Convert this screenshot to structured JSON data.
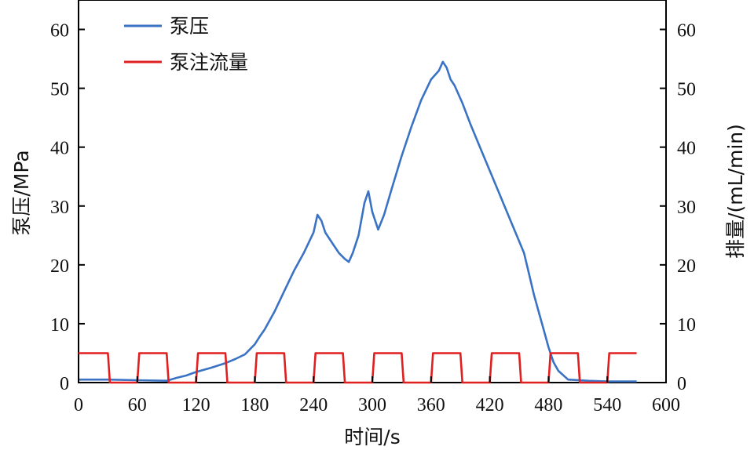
{
  "chart_data": {
    "type": "line",
    "xlabel": "时间/s",
    "ylabel_left": "泵压/MPa",
    "ylabel_right": "排量/(mL/min)",
    "xlim": [
      0,
      600
    ],
    "ylim_left": [
      0,
      65
    ],
    "ylim_right": [
      0,
      65
    ],
    "x_ticks": [
      0,
      60,
      120,
      180,
      240,
      300,
      360,
      420,
      480,
      540,
      600
    ],
    "y_ticks_left": [
      0,
      10,
      20,
      30,
      40,
      50,
      60
    ],
    "y_ticks_right": [
      0,
      10,
      20,
      30,
      40,
      50,
      60
    ],
    "grid": false,
    "legend_position": "top-left",
    "series": [
      {
        "name": "泵压",
        "color": "#3a72c4",
        "axis": "left",
        "x": [
          0,
          30,
          60,
          90,
          100,
          110,
          120,
          135,
          150,
          160,
          170,
          180,
          185,
          190,
          200,
          210,
          220,
          230,
          240,
          244,
          248,
          252,
          260,
          266,
          272,
          276,
          280,
          286,
          292,
          296,
          300,
          306,
          312,
          320,
          330,
          340,
          350,
          360,
          368,
          372,
          376,
          380,
          384,
          392,
          400,
          410,
          420,
          430,
          440,
          450,
          455,
          460,
          465,
          470,
          475,
          480,
          485,
          490,
          500,
          520,
          540,
          570
        ],
        "y": [
          0.5,
          0.5,
          0.4,
          0.3,
          0.8,
          1.2,
          1.8,
          2.5,
          3.3,
          4.0,
          4.8,
          6.5,
          7.8,
          9.0,
          12.0,
          15.5,
          19.0,
          22.0,
          25.5,
          28.5,
          27.5,
          25.5,
          23.5,
          22.0,
          21.0,
          20.5,
          22.0,
          25.0,
          30.5,
          32.5,
          29.0,
          26.0,
          28.5,
          33.0,
          38.5,
          43.5,
          48.0,
          51.5,
          53.0,
          54.5,
          53.5,
          51.5,
          50.5,
          47.5,
          44.0,
          40.0,
          36.0,
          32.0,
          28.0,
          24.0,
          22.0,
          18.5,
          15.0,
          12.0,
          9.0,
          6.0,
          3.5,
          2.0,
          0.5,
          0.3,
          0.2,
          0.2
        ]
      },
      {
        "name": "泵注流量",
        "color": "#e02020",
        "axis": "right",
        "x": [
          0,
          30,
          32,
          60,
          62,
          90,
          92,
          120,
          122,
          150,
          152,
          180,
          182,
          210,
          212,
          240,
          242,
          270,
          272,
          300,
          302,
          330,
          332,
          360,
          362,
          390,
          392,
          420,
          422,
          450,
          452,
          480,
          482,
          510,
          512,
          540,
          542,
          570
        ],
        "y": [
          5,
          5,
          0,
          0,
          5,
          5,
          0,
          0,
          5,
          5,
          0,
          0,
          5,
          5,
          0,
          0,
          5,
          5,
          0,
          0,
          5,
          5,
          0,
          0,
          5,
          5,
          0,
          0,
          5,
          5,
          0,
          0,
          5,
          5,
          0,
          0,
          5,
          5
        ]
      }
    ]
  }
}
